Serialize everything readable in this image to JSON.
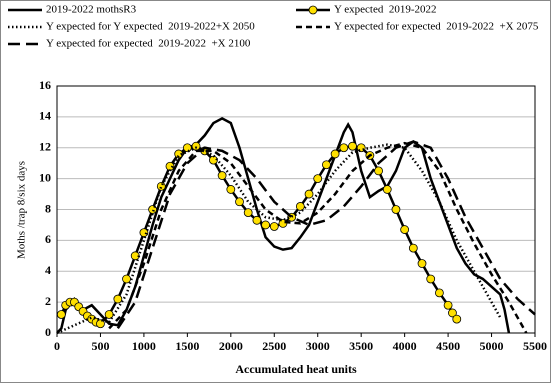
{
  "chart_data": {
    "type": "line",
    "x_label": "Accumulated heat units",
    "y_label": "Moths /trap 8/six days",
    "xlim": [
      0,
      5500
    ],
    "xticks": [
      0,
      500,
      1000,
      1500,
      2000,
      2500,
      3000,
      3500,
      4000,
      4500,
      5000,
      5500
    ],
    "ylim": [
      0,
      16
    ],
    "yticks": [
      0,
      2,
      4,
      6,
      8,
      10,
      12,
      14,
      16
    ],
    "grid": true,
    "series": [
      {
        "name": "2019-2022 mothsR3",
        "color": "#000000",
        "line_style": "solid",
        "x": [
          0,
          50,
          100,
          200,
          300,
          400,
          500,
          600,
          700,
          800,
          900,
          1000,
          1100,
          1200,
          1300,
          1400,
          1500,
          1600,
          1700,
          1800,
          1900,
          2000,
          2100,
          2200,
          2300,
          2400,
          2500,
          2600,
          2700,
          2800,
          2900,
          3000,
          3100,
          3200,
          3300,
          3350,
          3400,
          3500,
          3600,
          3700,
          3800,
          3900,
          4000,
          4100,
          4200,
          4300,
          4400,
          4500,
          4600,
          4700,
          4800,
          4900,
          5000,
          5100,
          5150,
          5200
        ],
        "values": [
          0,
          0.3,
          1.5,
          2.2,
          1.5,
          1.8,
          1.2,
          0.6,
          0.5,
          1.5,
          3,
          5,
          7,
          8.8,
          10,
          11.2,
          12,
          12.2,
          12.8,
          13.6,
          13.9,
          13.6,
          12,
          10,
          8,
          6.2,
          5.6,
          5.4,
          5.5,
          6.2,
          7,
          8.5,
          10,
          11.5,
          13,
          13.5,
          13,
          10.5,
          8.8,
          9.2,
          9.5,
          10.5,
          12,
          12.4,
          12,
          10,
          8.5,
          7,
          5.5,
          4.5,
          3.8,
          3.5,
          3,
          2.5,
          1.5,
          0
        ]
      },
      {
        "name": "Y expected  2019-2022",
        "color": "#000000",
        "line_style": "solid",
        "marker": "circle",
        "marker_color": "#ffe000",
        "x": [
          50,
          100,
          150,
          200,
          250,
          300,
          350,
          400,
          450,
          500,
          600,
          700,
          800,
          900,
          1000,
          1100,
          1200,
          1300,
          1400,
          1500,
          1600,
          1700,
          1800,
          1900,
          2000,
          2100,
          2200,
          2300,
          2400,
          2500,
          2600,
          2700,
          2800,
          2900,
          3000,
          3100,
          3200,
          3300,
          3400,
          3500,
          3600,
          3700,
          3800,
          3900,
          4000,
          4100,
          4200,
          4300,
          4400,
          4500,
          4550,
          4600
        ],
        "values": [
          1.2,
          1.8,
          2,
          2,
          1.7,
          1.4,
          1.1,
          0.9,
          0.7,
          0.6,
          1.2,
          2.2,
          3.5,
          5,
          6.5,
          8,
          9.5,
          10.8,
          11.6,
          12,
          12.1,
          11.8,
          11.2,
          10.2,
          9.3,
          8.5,
          7.8,
          7.3,
          7,
          6.9,
          7.1,
          7.5,
          8.2,
          9,
          10,
          10.9,
          11.6,
          12,
          12.1,
          12,
          11.5,
          10.5,
          9.3,
          8,
          6.7,
          5.5,
          4.5,
          3.5,
          2.6,
          1.8,
          1.3,
          0.9
        ]
      },
      {
        "name": "Y expected for Y expected  2019-2022+X 2050",
        "color": "#000000",
        "line_style": "dotted",
        "x": [
          0,
          200,
          400,
          600,
          800,
          1000,
          1200,
          1400,
          1600,
          1800,
          2000,
          2200,
          2400,
          2600,
          2800,
          3000,
          3200,
          3400,
          3600,
          3800,
          4000,
          4200,
          4400,
          4600,
          4800,
          5000,
          5100
        ],
        "values": [
          0,
          0.5,
          1,
          0.7,
          2.5,
          6,
          9.5,
          11.5,
          12,
          11.5,
          10.2,
          8.5,
          7.5,
          7.3,
          7.8,
          9,
          10.5,
          11.7,
          12,
          12.2,
          12,
          10.5,
          8.5,
          6,
          4,
          2,
          1
        ]
      },
      {
        "name": "Y expected for expected  2019-2022  +X 2075",
        "color": "#000000",
        "line_style": "dashed",
        "x": [
          600,
          800,
          1000,
          1200,
          1400,
          1600,
          1800,
          2000,
          2200,
          2400,
          2600,
          2800,
          3000,
          3200,
          3400,
          3600,
          3800,
          4000,
          4200,
          4400,
          4600,
          4800,
          5000,
          5200,
          5300,
          5400
        ],
        "values": [
          0.3,
          1.5,
          4.5,
          8,
          10.5,
          11.8,
          11.8,
          11,
          9.5,
          8,
          7.2,
          7.1,
          7.8,
          9,
          10.5,
          11.5,
          12,
          12.3,
          12,
          10.5,
          8,
          5.8,
          3.8,
          2,
          1,
          0
        ]
      },
      {
        "name": "Y expected for expected  2019-2022  +X 2100",
        "color": "#000000",
        "line_style": "long-dashed",
        "x": [
          700,
          900,
          1100,
          1300,
          1500,
          1700,
          1900,
          2100,
          2300,
          2500,
          2700,
          2900,
          3100,
          3300,
          3500,
          3700,
          3900,
          4100,
          4300,
          4500,
          4700,
          4900,
          5100,
          5300,
          5500
        ],
        "values": [
          0.3,
          2,
          5.5,
          9,
          11,
          12,
          11.8,
          11.2,
          10,
          8.5,
          7.5,
          7,
          7.3,
          8.2,
          9.5,
          11,
          12,
          12.4,
          12,
          10,
          7.5,
          5.5,
          3.5,
          2.2,
          1.2
        ]
      }
    ]
  }
}
